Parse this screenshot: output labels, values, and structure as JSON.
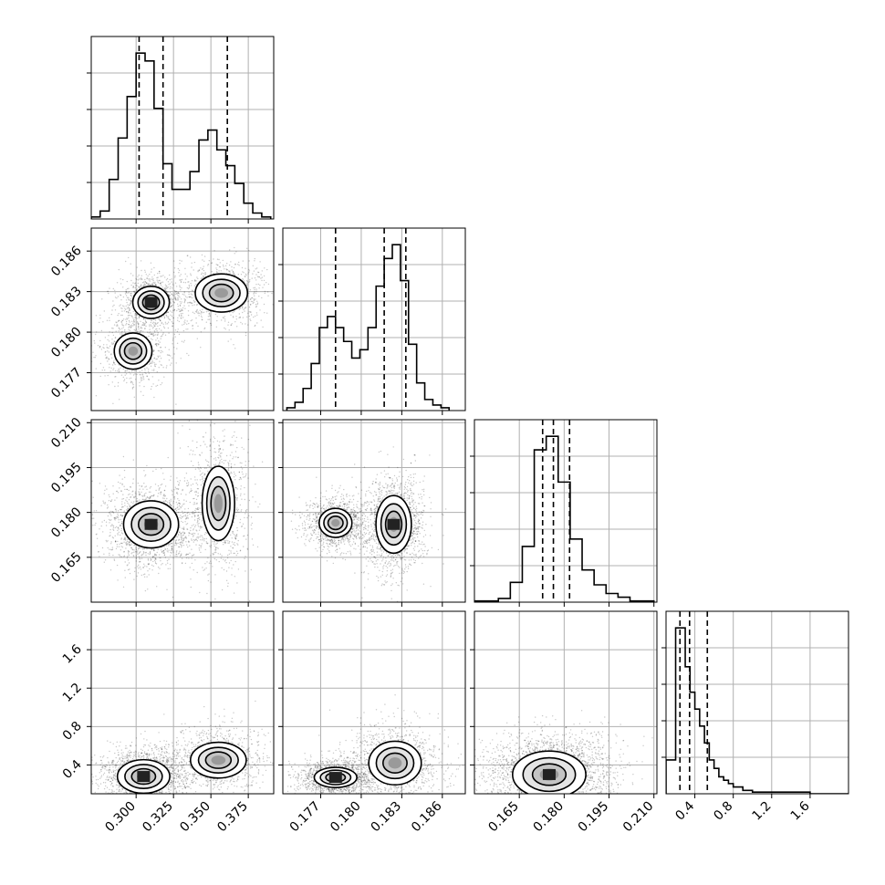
{
  "chart_data": {
    "type": "corner",
    "dimensions": 4,
    "params": [
      {
        "range": [
          0.27,
          0.392
        ],
        "ticks": [
          0.3,
          0.325,
          0.35,
          0.375
        ],
        "tick_labels": [
          "0.300",
          "0.325",
          "0.350",
          "0.375"
        ]
      },
      {
        "range": [
          0.1742,
          0.1877
        ],
        "ticks": [
          0.177,
          0.18,
          0.183,
          0.186
        ],
        "tick_labels": [
          "0.177",
          "0.180",
          "0.183",
          "0.186"
        ]
      },
      {
        "range": [
          0.15,
          0.211
        ],
        "ticks": [
          0.165,
          0.18,
          0.195,
          0.21
        ],
        "tick_labels": [
          "0.165",
          "0.180",
          "0.195",
          "0.210"
        ]
      },
      {
        "range": [
          0.1,
          2.0
        ],
        "ticks": [
          0.4,
          0.8,
          1.2,
          1.6
        ],
        "tick_labels": [
          "0.4",
          "0.8",
          "1.2",
          "1.6"
        ]
      }
    ],
    "histograms": [
      {
        "bins": [
          0.27,
          0.276,
          0.282,
          0.288,
          0.294,
          0.3,
          0.306,
          0.312,
          0.318,
          0.324,
          0.33,
          0.336,
          0.342,
          0.348,
          0.354,
          0.36,
          0.366,
          0.372,
          0.378,
          0.384,
          0.39
        ],
        "counts": [
          1,
          4,
          20,
          41,
          62,
          84,
          80,
          56,
          28,
          15,
          15,
          24,
          40,
          45,
          35,
          27,
          18,
          8,
          3,
          1
        ],
        "quantiles": [
          0.302,
          0.318,
          0.361
        ]
      },
      {
        "bins": [
          0.1745,
          0.1751,
          0.1757,
          0.1763,
          0.1769,
          0.1775,
          0.1781,
          0.1787,
          0.1793,
          0.1799,
          0.1805,
          0.1811,
          0.1817,
          0.1823,
          0.1829,
          0.1835,
          0.1841,
          0.1847,
          0.1853,
          0.1859,
          0.1865
        ],
        "counts": [
          1,
          3,
          8,
          17,
          30,
          34,
          30,
          25,
          19,
          22,
          30,
          45,
          55,
          60,
          47,
          24,
          10,
          4,
          2,
          1
        ],
        "quantiles": [
          0.1781,
          0.1817,
          0.1833
        ]
      },
      {
        "bins": [
          0.15,
          0.154,
          0.158,
          0.162,
          0.166,
          0.17,
          0.174,
          0.178,
          0.182,
          0.186,
          0.19,
          0.194,
          0.198,
          0.202,
          0.206,
          0.21
        ],
        "counts": [
          1,
          1,
          3,
          16,
          45,
          123,
          134,
          97,
          51,
          26,
          14,
          7,
          4,
          1,
          1
        ],
        "quantiles": [
          0.1728,
          0.1764,
          0.1818
        ]
      },
      {
        "bins": [
          0.1,
          0.2,
          0.25,
          0.3,
          0.35,
          0.4,
          0.45,
          0.5,
          0.55,
          0.6,
          0.65,
          0.7,
          0.75,
          0.8,
          0.9,
          1.0,
          1.1,
          1.2,
          1.4,
          1.6,
          2.0
        ],
        "counts": [
          20,
          98,
          98,
          75,
          60,
          50,
          40,
          30,
          20,
          15,
          10,
          8,
          6,
          4,
          2,
          1,
          1,
          1,
          1,
          0
        ],
        "quantiles": [
          0.245,
          0.345,
          0.53
        ]
      }
    ],
    "density_modes": [
      [
        {
          "x": 0.31,
          "y": 0.1822,
          "sx": 0.007,
          "sy": 0.00068,
          "w": 1.0
        },
        {
          "x": 0.298,
          "y": 0.1786,
          "sx": 0.008,
          "sy": 0.00085,
          "w": 0.6
        },
        {
          "x": 0.357,
          "y": 0.1829,
          "sx": 0.0105,
          "sy": 0.00085,
          "w": 0.8
        }
      ],
      [
        {
          "x": 0.31,
          "y": 0.176,
          "sx": 0.0105,
          "sy": 0.0045,
          "w": 1.0
        },
        {
          "x": 0.355,
          "y": 0.183,
          "sx": 0.007,
          "sy": 0.008,
          "w": 0.55
        }
      ],
      [
        {
          "x": 0.1781,
          "y": 0.1765,
          "sx": 0.00075,
          "sy": 0.003,
          "w": 0.7
        },
        {
          "x": 0.1824,
          "y": 0.176,
          "sx": 0.00075,
          "sy": 0.0055,
          "w": 1.0
        }
      ],
      [
        {
          "x": 0.305,
          "y": 0.28,
          "sx": 0.01,
          "sy": 0.1,
          "w": 1.0
        },
        {
          "x": 0.355,
          "y": 0.45,
          "sx": 0.012,
          "sy": 0.12,
          "w": 0.55
        }
      ],
      [
        {
          "x": 0.1781,
          "y": 0.27,
          "sx": 0.0009,
          "sy": 0.06,
          "w": 1.0
        },
        {
          "x": 0.1825,
          "y": 0.42,
          "sx": 0.0012,
          "sy": 0.14,
          "w": 0.7
        }
      ],
      [
        {
          "x": 0.175,
          "y": 0.3,
          "sx": 0.007,
          "sy": 0.14,
          "w": 1.0
        }
      ]
    ]
  }
}
